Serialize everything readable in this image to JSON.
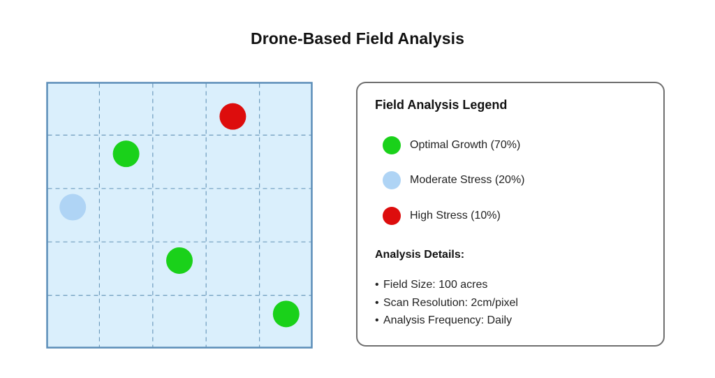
{
  "title": "Drone-Based Field Analysis",
  "colors": {
    "optimal": "#1ad11a",
    "moderate": "#afd4f5",
    "high": "#dd0d0d",
    "field_fill": "#daeffc",
    "field_border": "#5b8db8",
    "grid_line": "#6e9cbd"
  },
  "field": {
    "grid_columns": 5,
    "grid_rows": 5,
    "markers": [
      {
        "status": "high",
        "col": 3.5,
        "row": 0.65
      },
      {
        "status": "optimal",
        "col": 1.5,
        "row": 1.35
      },
      {
        "status": "moderate",
        "col": 0.5,
        "row": 2.35
      },
      {
        "status": "optimal",
        "col": 2.5,
        "row": 3.35
      },
      {
        "status": "optimal",
        "col": 4.5,
        "row": 4.35
      }
    ]
  },
  "legend": {
    "title": "Field Analysis Legend",
    "items": [
      {
        "status": "optimal",
        "label": "Optimal Growth (70%)"
      },
      {
        "status": "moderate",
        "label": "Moderate Stress (20%)"
      },
      {
        "status": "high",
        "label": "High Stress (10%)"
      }
    ]
  },
  "details": {
    "title": "Analysis Details:",
    "bullet": "•",
    "items": [
      "Field Size: 100 acres",
      "Scan Resolution: 2cm/pixel",
      "Analysis Frequency: Daily"
    ]
  }
}
